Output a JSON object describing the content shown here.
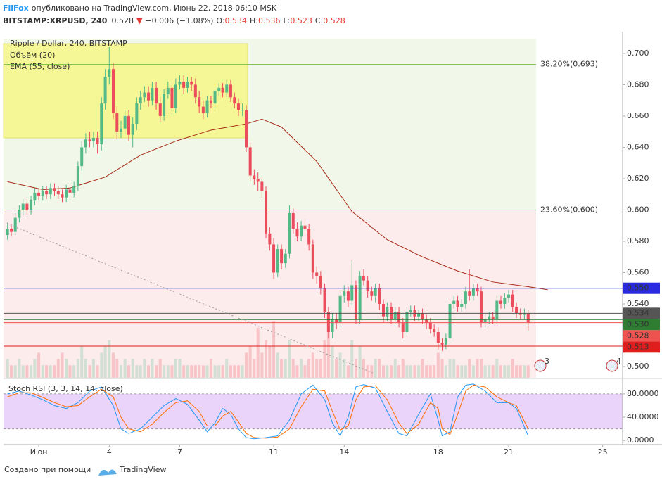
{
  "header": {
    "author": "FilFox",
    "published": "опубликовано на TradingView.com, Июнь 22, 2018 06:10 MSK",
    "symbol": "BITSTAMP:XRPUSD, 240",
    "last": "0.528",
    "arrow": "▼",
    "change": "−0.006 (−1.08%)",
    "ohlc": [
      {
        "k": "O:",
        "v": "0.534"
      },
      {
        "k": "H:",
        "v": "0.536"
      },
      {
        "k": "L:",
        "v": "0.523"
      },
      {
        "k": "C:",
        "v": "0.528"
      }
    ]
  },
  "footer": {
    "made_with": "Создано при помощи",
    "brand": "TradingView"
  },
  "chart_data": [
    {
      "type": "candlestick",
      "title": "Ripple / Dollar, 240, BITSTAMP",
      "up_color": "#53b987",
      "down_color": "#eb4d5c",
      "xlim": [
        -0.5,
        25.85
      ],
      "ylim": [
        0.4928,
        0.7094
      ],
      "yticks": [
        {
          "value": 0.5,
          "label": "0.500"
        },
        {
          "value": 0.52,
          "label": "0.520"
        },
        {
          "value": 0.54,
          "label": "0.540"
        },
        {
          "value": 0.56,
          "label": "0.560"
        },
        {
          "value": 0.58,
          "label": "0.580"
        },
        {
          "value": 0.6,
          "label": "0.600"
        },
        {
          "value": 0.62,
          "label": "0.620"
        },
        {
          "value": 0.64,
          "label": "0.640"
        },
        {
          "value": 0.66,
          "label": "0.660"
        },
        {
          "value": 0.68,
          "label": "0.680"
        },
        {
          "value": 0.7,
          "label": "0.700"
        }
      ],
      "x": [
        -0.33,
        -0.17,
        0,
        0.17,
        0.33,
        0.5,
        0.67,
        0.83,
        1,
        1.17,
        1.33,
        1.5,
        1.67,
        1.83,
        2,
        2.17,
        2.33,
        2.5,
        2.67,
        2.83,
        3,
        3.17,
        3.33,
        3.5,
        3.67,
        3.83,
        4,
        4.17,
        4.33,
        4.5,
        4.67,
        4.83,
        5,
        5.17,
        5.33,
        5.5,
        5.67,
        5.83,
        6,
        6.17,
        6.33,
        6.5,
        6.67,
        6.83,
        7,
        7.17,
        7.33,
        7.5,
        7.67,
        7.83,
        8,
        8.17,
        8.33,
        8.5,
        8.67,
        8.83,
        9,
        9.17,
        9.33,
        9.5,
        9.67,
        9.83,
        10,
        10.17,
        10.33,
        10.5,
        10.67,
        10.83,
        11,
        11.17,
        11.33,
        11.5,
        11.67,
        11.83,
        12,
        12.17,
        12.33,
        12.5,
        12.67,
        12.83,
        13,
        13.17,
        13.33,
        13.5,
        13.67,
        13.83,
        14,
        14.17,
        14.33,
        14.5,
        14.67,
        14.83,
        15,
        15.17,
        15.33,
        15.5,
        15.67,
        15.83,
        16,
        16.17,
        16.33,
        16.5,
        16.67,
        16.83,
        17,
        17.17,
        17.33,
        17.5,
        17.67,
        17.83,
        18,
        18.17,
        18.33,
        18.5,
        18.67,
        18.83,
        19,
        19.17,
        19.33,
        19.5,
        19.67,
        19.83,
        20,
        20.17,
        20.33,
        20.5,
        20.67,
        20.83,
        21,
        21.17,
        21.33,
        21.5,
        21.67,
        21.83
      ],
      "open": [
        0.584,
        0.588,
        0.586,
        0.595,
        0.6,
        0.604,
        0.6,
        0.606,
        0.611,
        0.609,
        0.612,
        0.61,
        0.614,
        0.612,
        0.61,
        0.608,
        0.613,
        0.611,
        0.615,
        0.628,
        0.64,
        0.645,
        0.644,
        0.646,
        0.642,
        0.668,
        0.685,
        0.69,
        0.662,
        0.65,
        0.652,
        0.66,
        0.648,
        0.655,
        0.668,
        0.672,
        0.675,
        0.67,
        0.678,
        0.668,
        0.66,
        0.674,
        0.678,
        0.665,
        0.68,
        0.682,
        0.678,
        0.682,
        0.68,
        0.672,
        0.666,
        0.662,
        0.67,
        0.668,
        0.676,
        0.678,
        0.675,
        0.68,
        0.672,
        0.668,
        0.664,
        0.664,
        0.64,
        0.622,
        0.62,
        0.618,
        0.612,
        0.585,
        0.578,
        0.56,
        0.575,
        0.566,
        0.572,
        0.598,
        0.588,
        0.583,
        0.59,
        0.588,
        0.578,
        0.56,
        0.558,
        0.55,
        0.535,
        0.522,
        0.53,
        0.528,
        0.545,
        0.548,
        0.542,
        0.552,
        0.53,
        0.558,
        0.555,
        0.548,
        0.545,
        0.55,
        0.54,
        0.532,
        0.538,
        0.53,
        0.535,
        0.528,
        0.522,
        0.535,
        0.536,
        0.532,
        0.534,
        0.53,
        0.528,
        0.524,
        0.522,
        0.515,
        0.514,
        0.518,
        0.54,
        0.542,
        0.538,
        0.54,
        0.548,
        0.545,
        0.55,
        0.548,
        0.528,
        0.53,
        0.532,
        0.53,
        0.542,
        0.54,
        0.544,
        0.546,
        0.538,
        0.534,
        0.533,
        0.534
      ],
      "high": [
        0.592,
        0.591,
        0.598,
        0.603,
        0.607,
        0.607,
        0.609,
        0.614,
        0.614,
        0.615,
        0.615,
        0.617,
        0.617,
        0.615,
        0.613,
        0.616,
        0.616,
        0.618,
        0.631,
        0.644,
        0.649,
        0.65,
        0.65,
        0.65,
        0.672,
        0.69,
        0.704,
        0.694,
        0.666,
        0.657,
        0.664,
        0.664,
        0.659,
        0.672,
        0.676,
        0.679,
        0.679,
        0.682,
        0.682,
        0.672,
        0.677,
        0.682,
        0.681,
        0.684,
        0.686,
        0.686,
        0.685,
        0.685,
        0.684,
        0.676,
        0.67,
        0.673,
        0.673,
        0.679,
        0.681,
        0.681,
        0.683,
        0.683,
        0.675,
        0.671,
        0.668,
        0.667,
        0.643,
        0.626,
        0.624,
        0.621,
        0.615,
        0.589,
        0.582,
        0.578,
        0.578,
        0.575,
        0.603,
        0.601,
        0.592,
        0.593,
        0.594,
        0.591,
        0.581,
        0.564,
        0.561,
        0.553,
        0.538,
        0.534,
        0.534,
        0.549,
        0.552,
        0.551,
        0.568,
        0.555,
        0.561,
        0.562,
        0.558,
        0.551,
        0.553,
        0.553,
        0.543,
        0.541,
        0.541,
        0.538,
        0.538,
        0.531,
        0.538,
        0.539,
        0.539,
        0.536,
        0.537,
        0.533,
        0.531,
        0.527,
        0.525,
        0.518,
        0.521,
        0.543,
        0.545,
        0.545,
        0.543,
        0.551,
        0.562,
        0.553,
        0.553,
        0.551,
        0.533,
        0.535,
        0.535,
        0.545,
        0.545,
        0.547,
        0.549,
        0.549,
        0.541,
        0.537,
        0.537,
        0.536
      ],
      "low": [
        0.581,
        0.583,
        0.584,
        0.592,
        0.597,
        0.597,
        0.597,
        0.603,
        0.606,
        0.606,
        0.607,
        0.607,
        0.609,
        0.607,
        0.605,
        0.605,
        0.608,
        0.608,
        0.612,
        0.625,
        0.636,
        0.64,
        0.64,
        0.636,
        0.638,
        0.664,
        0.68,
        0.658,
        0.645,
        0.646,
        0.648,
        0.644,
        0.64,
        0.651,
        0.664,
        0.669,
        0.666,
        0.667,
        0.664,
        0.656,
        0.657,
        0.671,
        0.661,
        0.662,
        0.677,
        0.674,
        0.675,
        0.676,
        0.668,
        0.662,
        0.658,
        0.659,
        0.665,
        0.665,
        0.673,
        0.672,
        0.672,
        0.669,
        0.665,
        0.66,
        0.66,
        0.637,
        0.618,
        0.616,
        0.612,
        0.608,
        0.582,
        0.574,
        0.556,
        0.557,
        0.562,
        0.563,
        0.569,
        0.585,
        0.58,
        0.58,
        0.585,
        0.574,
        0.556,
        0.553,
        0.546,
        0.531,
        0.518,
        0.518,
        0.524,
        0.525,
        0.541,
        0.538,
        0.539,
        0.527,
        0.527,
        0.552,
        0.544,
        0.542,
        0.541,
        0.536,
        0.528,
        0.529,
        0.527,
        0.527,
        0.525,
        0.518,
        0.519,
        0.532,
        0.529,
        0.529,
        0.527,
        0.524,
        0.521,
        0.519,
        0.511,
        0.51,
        0.511,
        0.515,
        0.537,
        0.535,
        0.535,
        0.537,
        0.542,
        0.542,
        0.545,
        0.525,
        0.525,
        0.527,
        0.527,
        0.527,
        0.537,
        0.537,
        0.541,
        0.535,
        0.531,
        0.53,
        0.53,
        0.523
      ],
      "close": [
        0.588,
        0.586,
        0.595,
        0.6,
        0.604,
        0.6,
        0.606,
        0.611,
        0.609,
        0.612,
        0.61,
        0.614,
        0.612,
        0.61,
        0.608,
        0.613,
        0.611,
        0.615,
        0.628,
        0.64,
        0.645,
        0.644,
        0.646,
        0.642,
        0.668,
        0.685,
        0.69,
        0.662,
        0.65,
        0.652,
        0.66,
        0.648,
        0.655,
        0.668,
        0.672,
        0.675,
        0.67,
        0.678,
        0.668,
        0.66,
        0.674,
        0.678,
        0.665,
        0.68,
        0.682,
        0.678,
        0.682,
        0.68,
        0.672,
        0.666,
        0.662,
        0.67,
        0.668,
        0.676,
        0.678,
        0.675,
        0.68,
        0.672,
        0.668,
        0.664,
        0.664,
        0.64,
        0.622,
        0.62,
        0.618,
        0.612,
        0.585,
        0.578,
        0.56,
        0.575,
        0.566,
        0.572,
        0.598,
        0.588,
        0.583,
        0.59,
        0.588,
        0.578,
        0.56,
        0.558,
        0.55,
        0.535,
        0.522,
        0.53,
        0.528,
        0.545,
        0.548,
        0.542,
        0.552,
        0.53,
        0.558,
        0.555,
        0.548,
        0.545,
        0.55,
        0.54,
        0.532,
        0.538,
        0.53,
        0.535,
        0.528,
        0.522,
        0.535,
        0.536,
        0.532,
        0.534,
        0.53,
        0.528,
        0.524,
        0.522,
        0.515,
        0.514,
        0.518,
        0.54,
        0.542,
        0.538,
        0.54,
        0.548,
        0.545,
        0.55,
        0.548,
        0.528,
        0.53,
        0.532,
        0.53,
        0.542,
        0.54,
        0.544,
        0.546,
        0.538,
        0.534,
        0.533,
        0.534,
        0.528
      ],
      "volume_label": "Объём (20)",
      "volume": [
        3,
        2,
        2,
        3,
        2,
        2,
        2,
        3,
        4,
        2,
        2,
        2,
        2,
        3,
        4,
        3,
        2,
        2,
        3,
        5,
        3,
        2,
        3,
        2,
        4,
        5,
        6,
        4,
        3,
        2,
        3,
        2,
        3,
        2,
        2,
        3,
        2,
        3,
        2,
        3,
        2,
        2,
        2,
        3,
        3,
        2,
        2,
        2,
        2,
        2,
        2,
        2,
        3,
        2,
        2,
        2,
        3,
        2,
        2,
        2,
        2,
        4,
        5,
        3,
        8,
        4,
        6,
        5,
        9,
        4,
        3,
        3,
        6,
        3,
        2,
        3,
        2,
        3,
        4,
        3,
        3,
        6,
        8,
        5,
        3,
        4,
        3,
        2,
        6,
        3,
        5,
        3,
        2,
        2,
        3,
        3,
        2,
        2,
        2,
        3,
        2,
        3,
        2,
        2,
        2,
        2,
        3,
        2,
        2,
        2,
        4,
        3,
        2,
        3,
        3,
        2,
        2,
        2,
        3,
        2,
        3,
        3,
        2,
        2,
        2,
        3,
        2,
        2,
        2,
        3,
        2,
        2,
        2,
        2
      ],
      "ema": {
        "name": "EMA (55, close)",
        "color": "#a52714",
        "x": [
          -0.33,
          1.17,
          2.33,
          3.83,
          5.33,
          6.83,
          8.33,
          9.83,
          10.5,
          11.33,
          12.83,
          14.33,
          15.83,
          17.33,
          18.83,
          20.33,
          21.83,
          22.67
        ],
        "values": [
          0.618,
          0.613,
          0.614,
          0.621,
          0.635,
          0.644,
          0.651,
          0.655,
          0.658,
          0.653,
          0.631,
          0.599,
          0.581,
          0.57,
          0.561,
          0.554,
          0.551,
          0.549
        ]
      },
      "fib_levels": [
        {
          "value": 0.693,
          "label": "38.20%(0.693)",
          "color": "#8bc34a"
        },
        {
          "value": 0.6,
          "label": "23.60%(0.600)",
          "color": "#e53935"
        }
      ],
      "price_lines": [
        {
          "value": 0.55,
          "label": "0.550",
          "color": "#2a2ae0"
        },
        {
          "value": 0.534,
          "label": "0.534",
          "color": "#555555"
        },
        {
          "value": 0.53,
          "label": "0.530",
          "color": "#2e7d32"
        },
        {
          "value": 0.528,
          "label": "0.528",
          "color": "#ef5350"
        },
        {
          "value": 0.513,
          "label": "0.513",
          "color": "#e01e1e"
        }
      ],
      "markers": [
        "3",
        "4"
      ]
    },
    {
      "type": "line",
      "title": "Stoch RSI (3, 3, 14, 14, close)",
      "xlim": [
        -0.5,
        25.85
      ],
      "ylim": [
        -7,
        104
      ],
      "band": [
        20,
        80
      ],
      "yticks": [
        {
          "value": 80,
          "label": "80.0000"
        },
        {
          "value": 40,
          "label": "40.0000"
        },
        {
          "value": 0,
          "label": "0.0000"
        }
      ],
      "xticks": [
        {
          "value": 1,
          "label": "Июн"
        },
        4,
        7,
        11,
        14,
        18,
        21,
        25
      ],
      "x": [
        -0.33,
        0.17,
        0.67,
        1.17,
        1.67,
        2.17,
        2.67,
        3.17,
        3.67,
        4.17,
        4.5,
        4.83,
        5.33,
        5.83,
        6.33,
        6.83,
        7.33,
        7.83,
        8.17,
        8.5,
        8.83,
        9.17,
        9.5,
        9.83,
        10.17,
        10.67,
        11.17,
        11.67,
        12.17,
        12.67,
        13.17,
        13.5,
        13.83,
        14.17,
        14.5,
        14.83,
        15.33,
        15.83,
        16.33,
        16.67,
        17.17,
        17.67,
        18.0,
        18.17,
        18.5,
        18.83,
        19.17,
        19.5,
        20.0,
        20.5,
        21.0,
        21.33,
        21.83
      ],
      "series": [
        {
          "color": "#2196f3",
          "values": [
            80,
            85,
            78,
            70,
            60,
            55,
            65,
            85,
            92,
            60,
            20,
            12,
            20,
            40,
            60,
            72,
            62,
            35,
            15,
            30,
            55,
            45,
            20,
            5,
            3,
            5,
            8,
            35,
            80,
            95,
            70,
            30,
            8,
            40,
            92,
            96,
            90,
            50,
            12,
            8,
            45,
            80,
            35,
            8,
            15,
            75,
            95,
            97,
            85,
            65,
            65,
            55,
            8
          ]
        },
        {
          "color": "#ff6d00",
          "values": [
            75,
            82,
            82,
            74,
            65,
            58,
            60,
            75,
            88,
            75,
            40,
            20,
            15,
            28,
            48,
            65,
            68,
            50,
            25,
            25,
            42,
            50,
            32,
            12,
            5,
            4,
            6,
            20,
            58,
            88,
            85,
            50,
            18,
            25,
            70,
            92,
            94,
            70,
            30,
            12,
            28,
            65,
            55,
            20,
            10,
            45,
            85,
            95,
            92,
            75,
            65,
            60,
            20
          ]
        }
      ]
    }
  ]
}
